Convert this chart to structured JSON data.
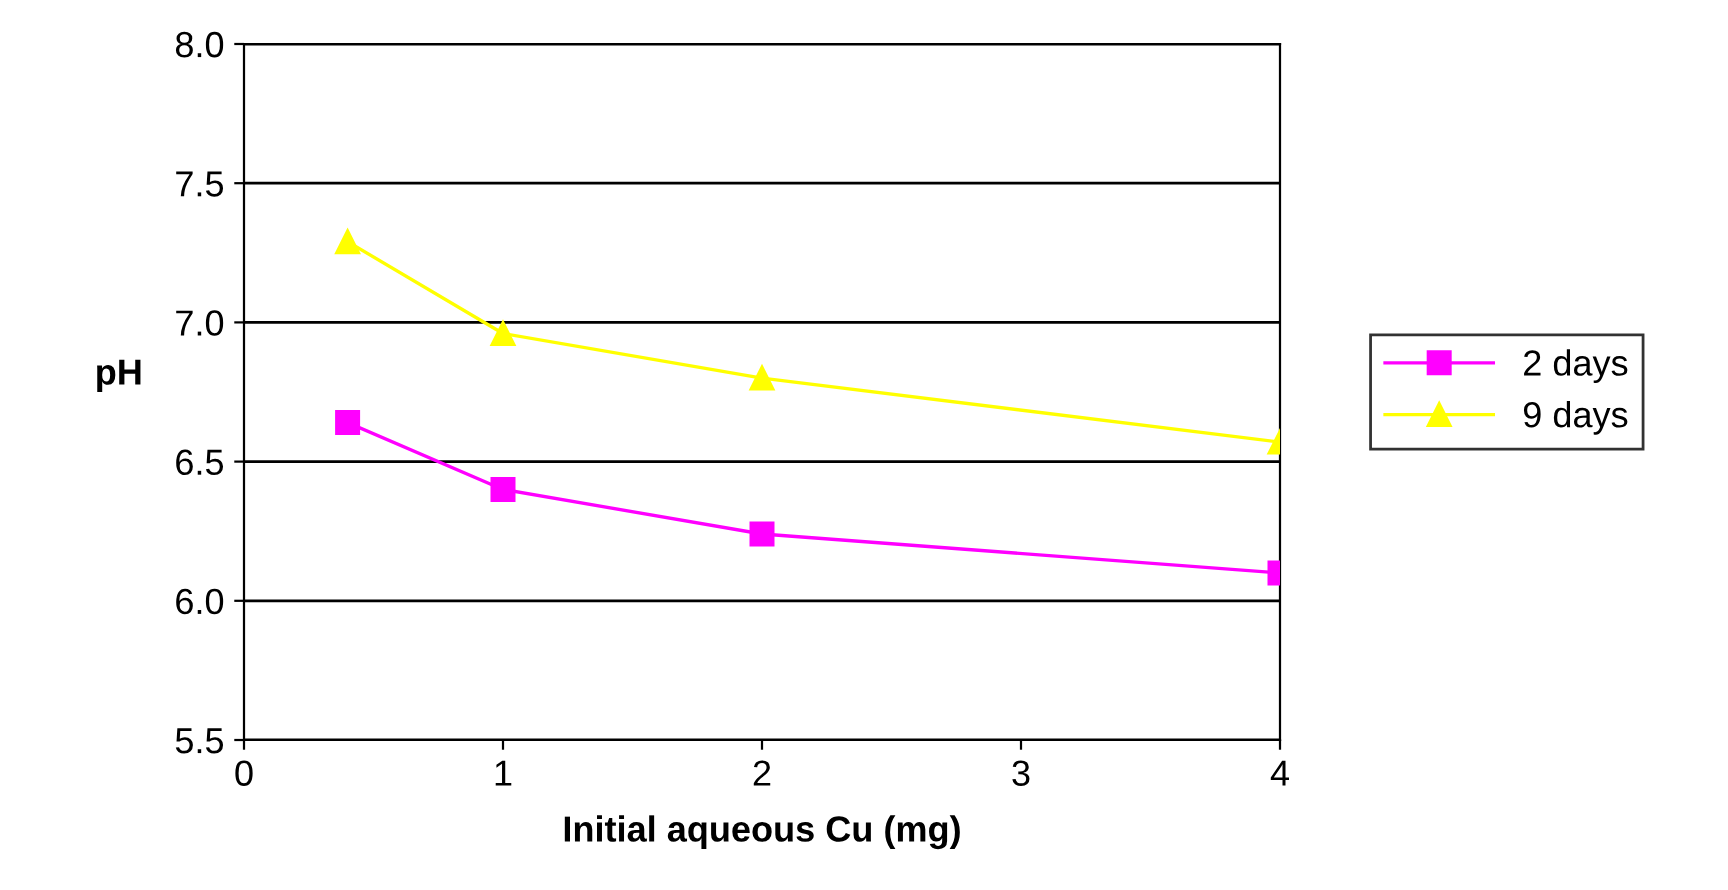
{
  "chart_data": {
    "type": "line",
    "xlabel": "Initial aqueous Cu (mg)",
    "ylabel": "pH",
    "x": [
      0.4,
      1,
      2,
      4
    ],
    "series": [
      {
        "name": "2 days",
        "color": "#ff00ff",
        "marker": "square",
        "values": [
          6.64,
          6.4,
          6.24,
          6.1
        ]
      },
      {
        "name": "9 days",
        "color": "#ffff00",
        "marker": "triangle",
        "values": [
          7.29,
          6.96,
          6.8,
          6.57
        ]
      }
    ],
    "xlim": [
      0,
      4
    ],
    "xticks": [
      0,
      1,
      2,
      3,
      4
    ],
    "ylim": [
      5.5,
      8.0
    ],
    "yticks": [
      {
        "value": 5.5,
        "label": "5.5"
      },
      {
        "value": 6.0,
        "label": "6.0"
      },
      {
        "value": 6.5,
        "label": "6.5"
      },
      {
        "value": 7.0,
        "label": "7.0"
      },
      {
        "value": 7.5,
        "label": "7.5"
      },
      {
        "value": 8.0,
        "label": "8.0"
      }
    ],
    "grid": "y",
    "legend": "right",
    "line_style": "solid"
  }
}
